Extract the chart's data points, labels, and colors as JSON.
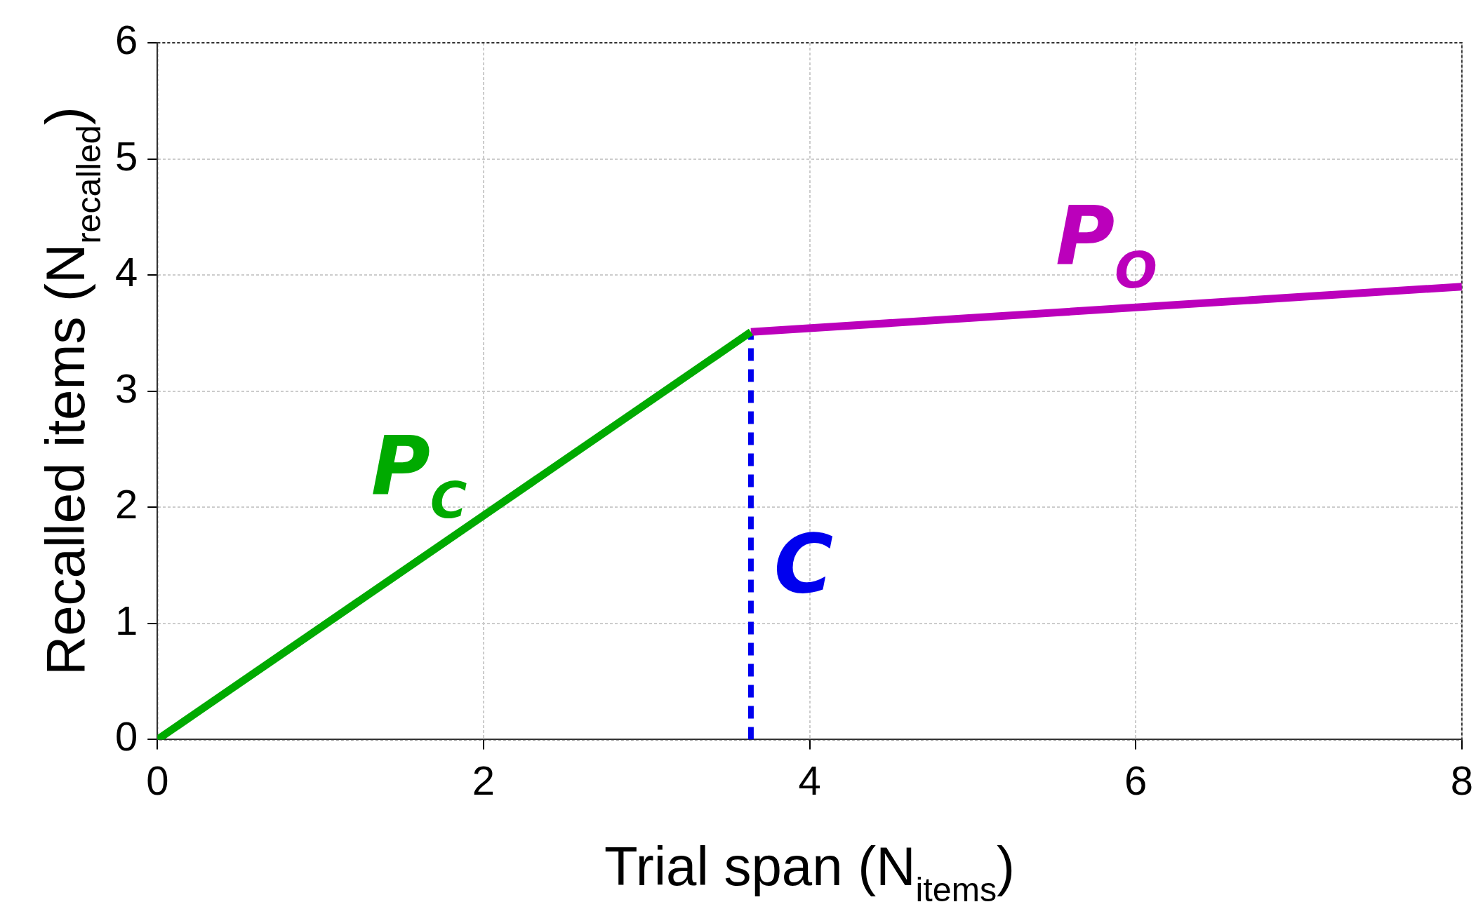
{
  "chart_data": {
    "type": "line",
    "xlabel": "Trial span (N$_{items}$)",
    "ylabel": "Recalled items (N$_{recalled}$)",
    "xlim": [
      0,
      8
    ],
    "xticks": [
      0,
      2,
      4,
      6,
      8
    ],
    "ylim": [
      0,
      6
    ],
    "yticks": [
      0,
      1,
      2,
      3,
      4,
      5,
      6
    ],
    "grid": true,
    "legend": false,
    "marker": "none",
    "series": [
      {
        "name": "P$_{C}$",
        "color": "#00aa00",
        "x": [
          0,
          3.64
        ],
        "values": [
          0,
          3.51
        ]
      },
      {
        "name": "P$_{O}$",
        "color": "#bb00bb",
        "x": [
          3.64,
          8
        ],
        "values": [
          3.51,
          3.9
        ]
      },
      {
        "name": "C",
        "color": "#0000ee",
        "x": [
          3.64,
          3.64
        ],
        "values": [
          0,
          3.51
        ],
        "line_style": "dashed"
      }
    ]
  }
}
